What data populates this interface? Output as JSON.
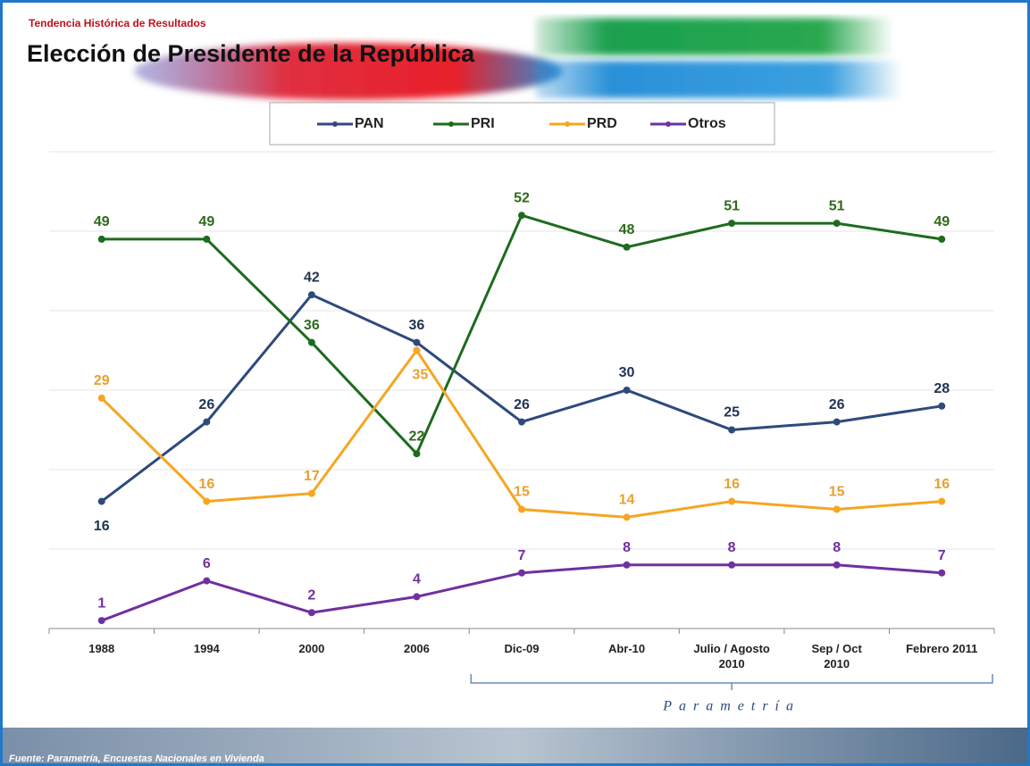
{
  "header": {
    "kicker": "Tendencia Histórica de Resultados",
    "title": "Elección de Presidente de la República"
  },
  "chart_data": {
    "type": "line",
    "categories": [
      "1988",
      "1994",
      "2000",
      "2006",
      "Dic-09",
      "Abr-10",
      "Julio / Agosto\n2010",
      "Sep / Oct\n2010",
      "Febrero 2011"
    ],
    "series": [
      {
        "name": "PAN",
        "color": "#2e4a7c",
        "label_color": "#1f3350",
        "values": [
          16,
          26,
          42,
          36,
          26,
          30,
          25,
          26,
          28
        ]
      },
      {
        "name": "PRI",
        "color": "#1e6b1e",
        "label_color": "#2d6b1a",
        "values": [
          49,
          49,
          36,
          22,
          52,
          48,
          51,
          51,
          49
        ]
      },
      {
        "name": "PRD",
        "color": "#f5a623",
        "label_color": "#e8a030",
        "values": [
          29,
          16,
          17,
          35,
          15,
          14,
          16,
          15,
          16
        ]
      },
      {
        "name": "Otros",
        "color": "#7030a0",
        "label_color": "#7030a0",
        "values": [
          1,
          6,
          2,
          4,
          7,
          8,
          8,
          8,
          7
        ]
      }
    ],
    "ylim": [
      0,
      60
    ],
    "yticks": [
      0,
      10,
      20,
      30,
      40,
      50,
      60
    ],
    "grid": true,
    "annotation": "Parametría",
    "source": "Fuente: Parametría, Encuestas Nacionales en Vivienda"
  }
}
